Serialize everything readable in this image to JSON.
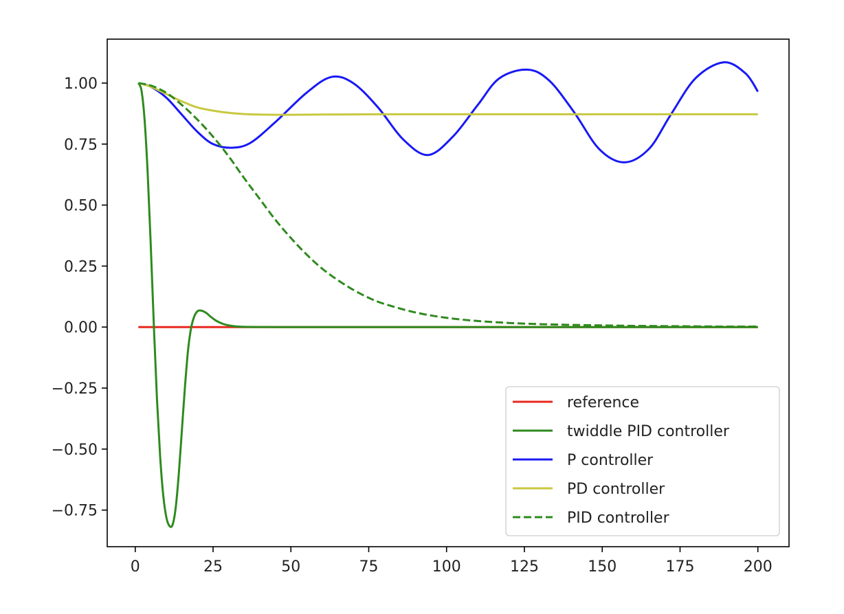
{
  "chart_data": {
    "type": "line",
    "title": "",
    "xlabel": "",
    "ylabel": "",
    "xlim": [
      -9,
      210
    ],
    "ylim": [
      -0.9,
      1.18
    ],
    "grid": false,
    "legend_position": "lower right",
    "x_ticks": [
      0,
      25,
      50,
      75,
      100,
      125,
      150,
      175,
      200
    ],
    "x_tick_labels": [
      "0",
      "25",
      "50",
      "75",
      "100",
      "125",
      "150",
      "175",
      "200"
    ],
    "y_ticks": [
      1.0,
      0.75,
      0.5,
      0.25,
      0.0,
      -0.25,
      -0.5,
      -0.75
    ],
    "y_tick_labels": [
      "1.00",
      "0.75",
      "0.50",
      "0.25",
      "0.00",
      "−0.25",
      "−0.50",
      "−0.75"
    ],
    "series": [
      {
        "name": "reference",
        "color": "#e8281e",
        "style": "solid",
        "x": [
          1,
          200
        ],
        "y": [
          0,
          0
        ]
      },
      {
        "name": "twiddle PID controller",
        "color": "#2e8a1e",
        "style": "solid",
        "x": [
          1,
          2,
          3,
          4,
          5,
          6,
          7,
          8,
          9,
          10,
          11,
          12,
          13,
          14,
          15,
          16,
          17,
          18,
          19,
          20,
          21,
          22,
          23,
          24,
          25,
          26,
          28,
          30,
          32,
          34,
          36,
          40,
          50,
          60,
          80,
          100,
          150,
          200
        ],
        "y": [
          1.0,
          0.97,
          0.85,
          0.63,
          0.33,
          0.0,
          -0.3,
          -0.53,
          -0.69,
          -0.78,
          -0.815,
          -0.81,
          -0.74,
          -0.6,
          -0.42,
          -0.24,
          -0.09,
          0.0,
          0.045,
          0.065,
          0.068,
          0.064,
          0.056,
          0.045,
          0.035,
          0.026,
          0.014,
          0.007,
          0.003,
          0.0015,
          0.0008,
          0.0003,
          0.0001,
          0.0,
          0.0,
          0.0,
          0.0,
          0.0
        ]
      },
      {
        "name": "P controller",
        "color": "#1919f5",
        "style": "solid",
        "x": [
          1,
          5,
          10,
          15,
          20,
          25,
          31,
          37,
          45,
          55,
          63,
          70,
          78,
          86,
          94,
          102,
          110,
          117,
          126,
          133,
          141,
          149,
          157,
          165,
          172,
          180,
          189,
          196,
          200
        ],
        "y": [
          1.0,
          0.985,
          0.94,
          0.87,
          0.8,
          0.75,
          0.735,
          0.755,
          0.84,
          0.96,
          1.025,
          1.0,
          0.9,
          0.77,
          0.705,
          0.78,
          0.91,
          1.02,
          1.055,
          1.01,
          0.88,
          0.73,
          0.675,
          0.73,
          0.87,
          1.02,
          1.085,
          1.04,
          0.965
        ]
      },
      {
        "name": "PD controller",
        "color": "#c8c840",
        "style": "solid",
        "x": [
          1,
          5,
          10,
          15,
          20,
          25,
          30,
          35,
          40,
          45,
          50,
          60,
          80,
          100,
          150,
          200
        ],
        "y": [
          1.0,
          0.985,
          0.955,
          0.925,
          0.9,
          0.887,
          0.878,
          0.873,
          0.871,
          0.87,
          0.87,
          0.871,
          0.872,
          0.872,
          0.872,
          0.872
        ]
      },
      {
        "name": "PID controller",
        "color": "#2e8a1e",
        "style": "dashed",
        "x": [
          1,
          5,
          10,
          15,
          20,
          25,
          30,
          35,
          40,
          45,
          50,
          55,
          60,
          65,
          70,
          75,
          80,
          90,
          100,
          110,
          120,
          130,
          140,
          150,
          160,
          170,
          180,
          190,
          200
        ],
        "y": [
          1.0,
          0.99,
          0.96,
          0.91,
          0.85,
          0.78,
          0.7,
          0.61,
          0.525,
          0.44,
          0.365,
          0.298,
          0.24,
          0.193,
          0.153,
          0.12,
          0.095,
          0.06,
          0.038,
          0.025,
          0.017,
          0.012,
          0.009,
          0.007,
          0.005,
          0.004,
          0.003,
          0.002,
          0.002
        ]
      }
    ]
  }
}
